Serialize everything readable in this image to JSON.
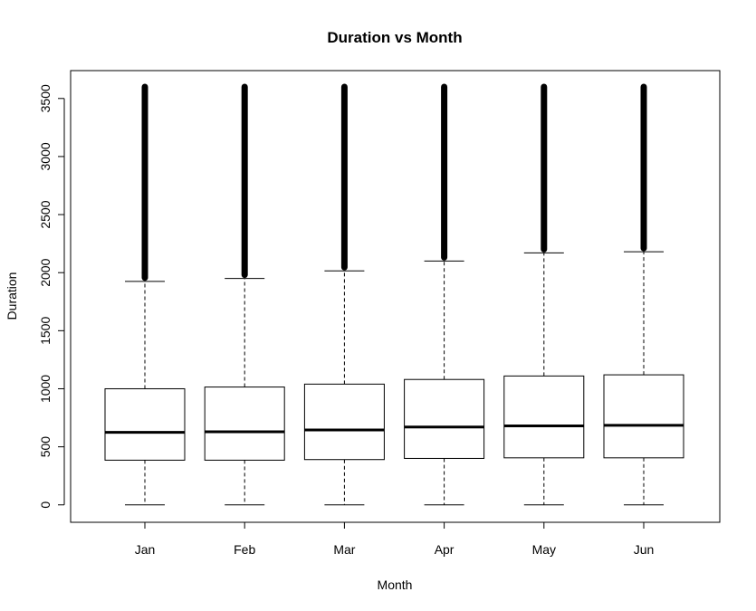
{
  "chart_data": {
    "type": "boxplot",
    "title": "Duration vs Month",
    "xlabel": "Month",
    "ylabel": "Duration",
    "categories": [
      "Jan",
      "Feb",
      "Mar",
      "Apr",
      "May",
      "Jun"
    ],
    "ylim": [
      -150,
      3740
    ],
    "yticks": [
      "0",
      "500",
      "1000",
      "1500",
      "2000",
      "2500",
      "3000",
      "3500"
    ],
    "boxes": [
      {
        "min": 0,
        "q1": 385,
        "median": 625,
        "q3": 1000,
        "whisker_high": 1925,
        "outlier_max": 3600
      },
      {
        "min": 0,
        "q1": 385,
        "median": 630,
        "q3": 1015,
        "whisker_high": 1950,
        "outlier_max": 3600
      },
      {
        "min": 0,
        "q1": 390,
        "median": 645,
        "q3": 1040,
        "whisker_high": 2015,
        "outlier_max": 3600
      },
      {
        "min": 0,
        "q1": 400,
        "median": 670,
        "q3": 1080,
        "whisker_high": 2100,
        "outlier_max": 3600
      },
      {
        "min": 0,
        "q1": 405,
        "median": 680,
        "q3": 1110,
        "whisker_high": 2170,
        "outlier_max": 3600
      },
      {
        "min": 0,
        "q1": 405,
        "median": 685,
        "q3": 1120,
        "whisker_high": 2180,
        "outlier_max": 3600
      }
    ],
    "grid": false,
    "legend": "none"
  }
}
